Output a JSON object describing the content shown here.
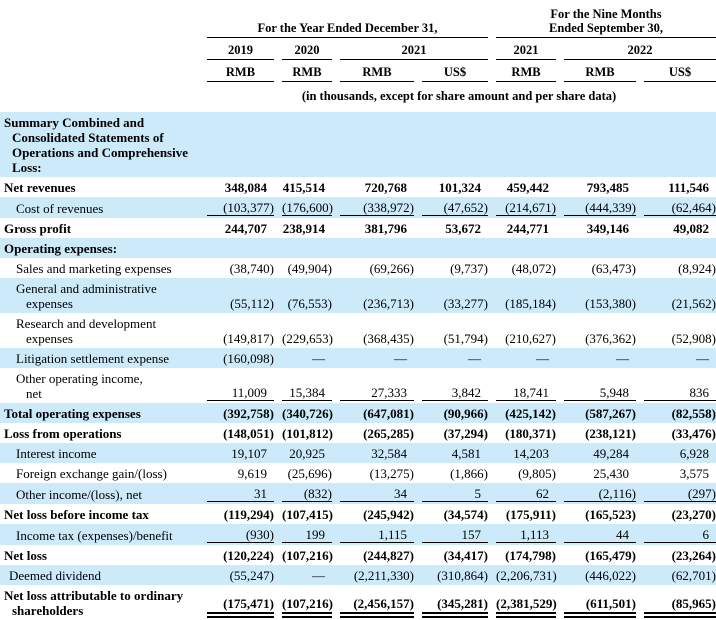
{
  "colors": {
    "band": "#CCEAF9",
    "text": "#000000",
    "rule": "#000000"
  },
  "table": {
    "col_groups": [
      {
        "label": "For the Year Ended December 31,",
        "span": 4
      },
      {
        "label": "For the Nine Months\nEnded September 30,",
        "span": 3
      }
    ],
    "years": [
      {
        "label": "2019",
        "span": 1
      },
      {
        "label": "2020",
        "span": 1
      },
      {
        "label": "2021",
        "span": 2
      },
      {
        "label": "2021",
        "span": 1
      },
      {
        "label": "2022",
        "span": 2
      }
    ],
    "currencies": [
      "RMB",
      "RMB",
      "RMB",
      "US$",
      "RMB",
      "RMB",
      "US$"
    ],
    "units_note": "(in thousands, except for share amount and per share data)",
    "rows": [
      {
        "label": "Summary Combined and\nConsolidated Statements of\nOperations and Comprehensive\nLoss:",
        "type": "section",
        "values": [
          "",
          "",
          "",
          "",
          "",
          "",
          ""
        ]
      },
      {
        "label": "Net revenues",
        "type": "total",
        "values": [
          "348,084",
          "415,514",
          "720,768",
          "101,324",
          "459,442",
          "793,485",
          "111,546"
        ]
      },
      {
        "label": "Cost of revenues",
        "type": "item",
        "underline_below": true,
        "values": [
          "(103,377)",
          "(176,600)",
          "(338,972)",
          "(47,652)",
          "(214,671)",
          "(444,339)",
          "(62,464)"
        ]
      },
      {
        "label": "Gross profit",
        "type": "total",
        "values": [
          "244,707",
          "238,914",
          "381,796",
          "53,672",
          "244,771",
          "349,146",
          "49,082"
        ]
      },
      {
        "label": "Operating expenses:",
        "type": "section",
        "values": [
          "",
          "",
          "",
          "",
          "",
          "",
          ""
        ]
      },
      {
        "label": "Sales and marketing expenses",
        "type": "item",
        "values": [
          "(38,740)",
          "(49,904)",
          "(69,266)",
          "(9,737)",
          "(48,072)",
          "(63,473)",
          "(8,924)"
        ]
      },
      {
        "label": "General and administrative\nexpenses",
        "type": "item",
        "values": [
          "(55,112)",
          "(76,553)",
          "(236,713)",
          "(33,277)",
          "(185,184)",
          "(153,380)",
          "(21,562)"
        ]
      },
      {
        "label": "Research and development\nexpenses",
        "type": "item",
        "values": [
          "(149,817)",
          "(229,653)",
          "(368,435)",
          "(51,794)",
          "(210,627)",
          "(376,362)",
          "(52,908)"
        ]
      },
      {
        "label": "Litigation settlement expense",
        "type": "item",
        "values": [
          "(160,098)",
          "—",
          "—",
          "—",
          "—",
          "—",
          "—"
        ]
      },
      {
        "label": "Other operating income,\nnet",
        "type": "item",
        "underline_below": true,
        "values": [
          "11,009",
          "15,384",
          "27,333",
          "3,842",
          "18,741",
          "5,948",
          "836"
        ]
      },
      {
        "label": "Total operating expenses",
        "type": "total",
        "values": [
          "(392,758)",
          "(340,726)",
          "(647,081)",
          "(90,966)",
          "(425,142)",
          "(587,267)",
          "(82,558)"
        ]
      },
      {
        "label": "Loss from operations",
        "type": "total",
        "values": [
          "(148,051)",
          "(101,812)",
          "(265,285)",
          "(37,294)",
          "(180,371)",
          "(238,121)",
          "(33,476)"
        ]
      },
      {
        "label": "Interest income",
        "type": "item",
        "values": [
          "19,107",
          "20,925",
          "32,584",
          "4,581",
          "14,203",
          "49,284",
          "6,928"
        ]
      },
      {
        "label": "Foreign exchange gain/(loss)",
        "type": "item",
        "values": [
          "9,619",
          "(25,696)",
          "(13,275)",
          "(1,866)",
          "(9,805)",
          "25,430",
          "3,575"
        ]
      },
      {
        "label": "Other income/(loss), net",
        "type": "item",
        "underline_below": true,
        "values": [
          "31",
          "(832)",
          "34",
          "5",
          "62",
          "(2,116)",
          "(297)"
        ]
      },
      {
        "label": "Net loss before income tax",
        "type": "total",
        "values": [
          "(119,294)",
          "(107,415)",
          "(245,942)",
          "(34,574)",
          "(175,911)",
          "(165,523)",
          "(23,270)"
        ]
      },
      {
        "label": "Income tax (expenses)/benefit",
        "type": "item",
        "underline_below": true,
        "values": [
          "(930)",
          "199",
          "1,115",
          "157",
          "1,113",
          "44",
          "6"
        ]
      },
      {
        "label": "Net loss",
        "type": "total",
        "values": [
          "(120,224)",
          "(107,216)",
          "(244,827)",
          "(34,417)",
          "(174,798)",
          "(165,479)",
          "(23,264)"
        ]
      },
      {
        "label": "Deemed dividend",
        "type": "plain",
        "values": [
          "(55,247)",
          "—",
          "(2,211,330)",
          "(310,864)",
          "(2,206,731)",
          "(446,022)",
          "(62,701)"
        ]
      },
      {
        "label": "Net loss attributable to ordinary\nshareholders",
        "type": "total",
        "double_underline_below": true,
        "values": [
          "(175,471)",
          "(107,216)",
          "(2,456,157)",
          "(345,281)",
          "(2,381,529)",
          "(611,501)",
          "(85,965)"
        ]
      }
    ]
  }
}
